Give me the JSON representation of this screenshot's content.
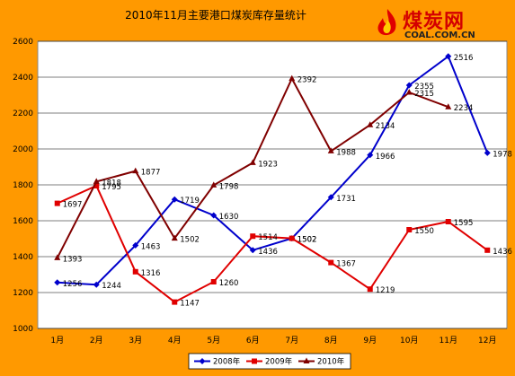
{
  "chart_data": {
    "type": "line",
    "title": "2010年11月主要港口煤炭库存量统计",
    "categories": [
      "1月",
      "2月",
      "3月",
      "4月",
      "5月",
      "6月",
      "7月",
      "8月",
      "9月",
      "10月",
      "11月",
      "12月"
    ],
    "ylim": [
      1000,
      2600
    ],
    "yticks": [
      1000,
      1200,
      1400,
      1600,
      1800,
      2000,
      2200,
      2400,
      2600
    ],
    "grid": true,
    "legend_position": "bottom",
    "series": [
      {
        "name": "2008年",
        "color": "#0000cc",
        "marker": "diamond",
        "values": [
          1256,
          1244,
          1463,
          1719,
          1630,
          1436,
          1502,
          1731,
          1966,
          2355,
          2516,
          1978
        ]
      },
      {
        "name": "2009年",
        "color": "#e00000",
        "marker": "square",
        "values": [
          1697,
          1795,
          1316,
          1147,
          1260,
          1514,
          1502,
          1367,
          1219,
          1550,
          1595,
          1436
        ]
      },
      {
        "name": "2010年",
        "color": "#800000",
        "marker": "triangle",
        "values": [
          1393,
          1818,
          1877,
          1502,
          1798,
          1923,
          2392,
          1988,
          2134,
          2315,
          2234,
          null
        ]
      }
    ]
  },
  "logo": {
    "name": "煤炭网",
    "url_text": "COAL.COM.CN"
  }
}
